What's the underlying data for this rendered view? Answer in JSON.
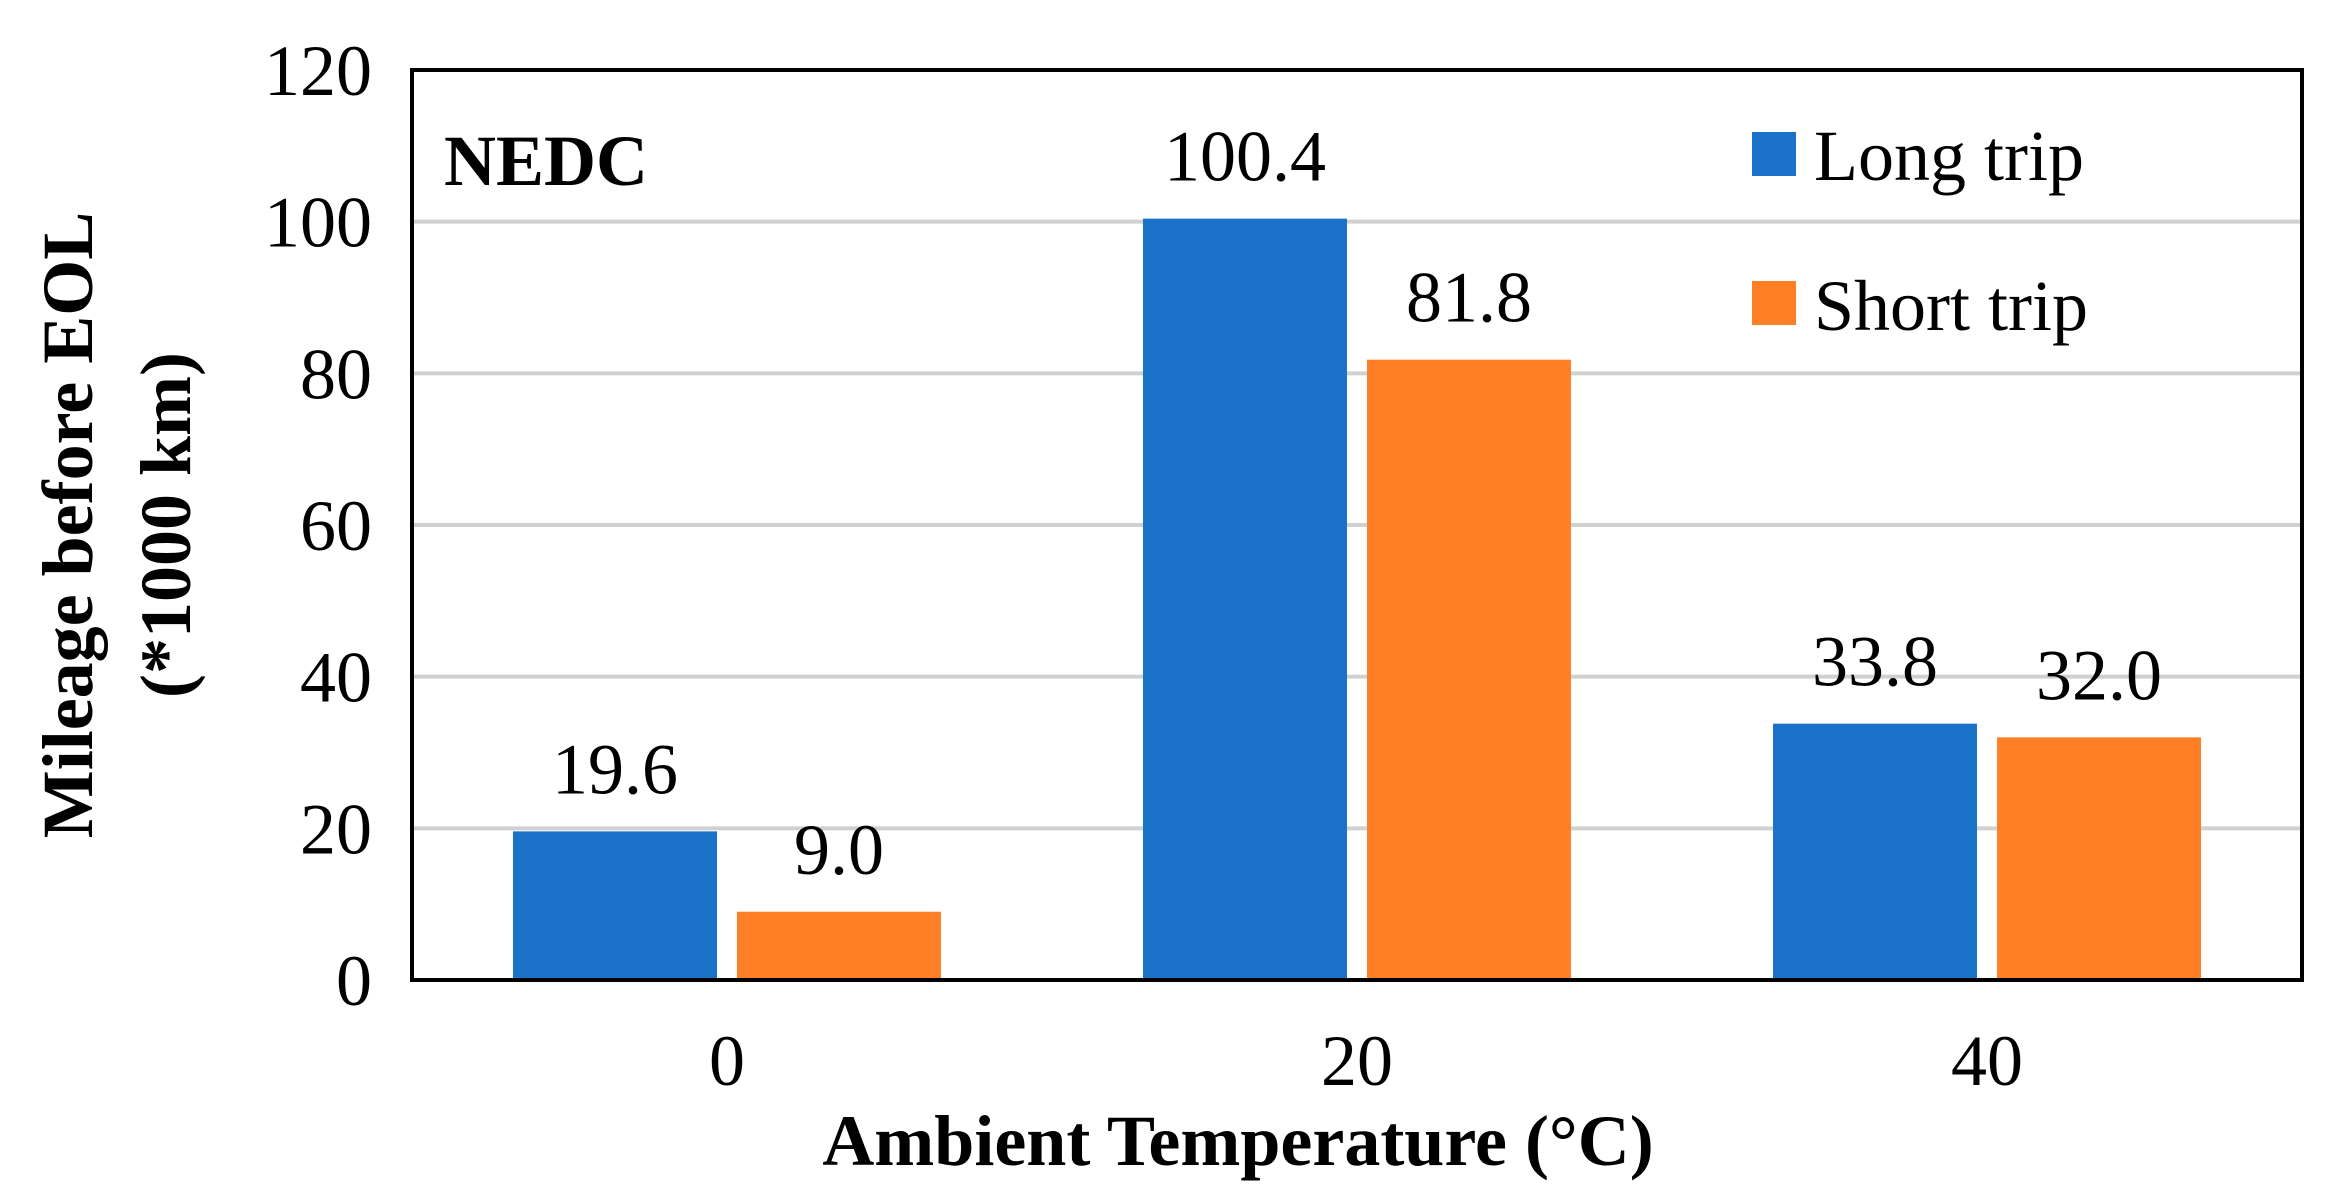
{
  "chart_data": {
    "type": "bar",
    "panel_label": "NEDC",
    "categories": [
      "0",
      "20",
      "40"
    ],
    "series": [
      {
        "name": "Long trip",
        "values": [
          19.6,
          100.4,
          33.8
        ],
        "labels": [
          "19.6",
          "100.4",
          "33.8"
        ],
        "color": "#1a73c8"
      },
      {
        "name": "Short trip",
        "values": [
          9.0,
          81.8,
          32.0
        ],
        "labels": [
          "9.0",
          "81.8",
          "32.0"
        ],
        "color": "#ff7f27"
      }
    ],
    "xlabel": "Ambient Temperature (°C)",
    "ylabel_line1": "Mileage before EOL",
    "ylabel_line2": "(*1000 km)",
    "ylim": [
      0,
      120
    ],
    "yticks": [
      "0",
      "20",
      "40",
      "60",
      "80",
      "100",
      "120"
    ],
    "grid": true,
    "legend_position": "top-right"
  }
}
